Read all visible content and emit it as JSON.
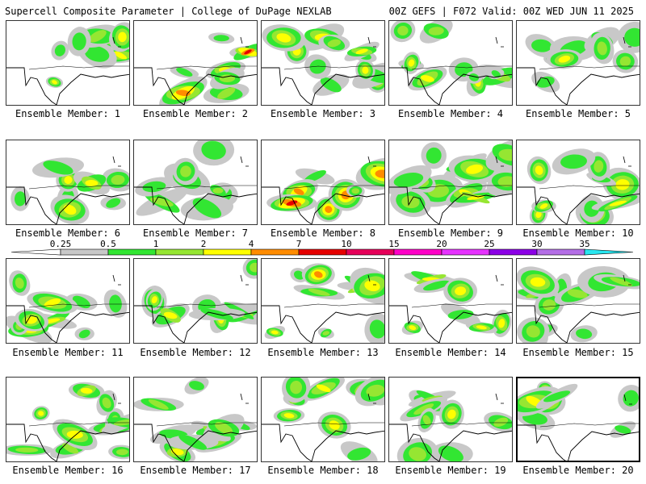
{
  "header": {
    "title_left": "Supercell Composite Parameter | College of DuPage NEXLAB",
    "title_right": "00Z GEFS | F072 Valid: 00Z WED JUN 11 2025"
  },
  "colorbar": {
    "ticks": [
      "0.25",
      "0.5",
      "1",
      "2",
      "4",
      "7",
      "10",
      "15",
      "20",
      "25",
      "30",
      "35"
    ],
    "colors": [
      "#c8c8c8",
      "#32e632",
      "#96e632",
      "#ffff00",
      "#ff8c00",
      "#e60000",
      "#e6005a",
      "#ff00c8",
      "#e632ff",
      "#8c00e6",
      "#b46ee6",
      "#28e6f0"
    ]
  },
  "panels": [
    {
      "label": "Ensemble Member: 1",
      "selected": false
    },
    {
      "label": "Ensemble Member: 2",
      "selected": false
    },
    {
      "label": "Ensemble Member: 3",
      "selected": false
    },
    {
      "label": "Ensemble Member: 4",
      "selected": false
    },
    {
      "label": "Ensemble Member: 5",
      "selected": false
    },
    {
      "label": "Ensemble Member: 6",
      "selected": false
    },
    {
      "label": "Ensemble Member: 7",
      "selected": false
    },
    {
      "label": "Ensemble Member: 8",
      "selected": false
    },
    {
      "label": "Ensemble Member: 9",
      "selected": false
    },
    {
      "label": "Ensemble Member: 10",
      "selected": false
    },
    {
      "label": "Ensemble Member: 11",
      "selected": false
    },
    {
      "label": "Ensemble Member: 12",
      "selected": false
    },
    {
      "label": "Ensemble Member: 13",
      "selected": false
    },
    {
      "label": "Ensemble Member: 14",
      "selected": false
    },
    {
      "label": "Ensemble Member: 15",
      "selected": false
    },
    {
      "label": "Ensemble Member: 16",
      "selected": false
    },
    {
      "label": "Ensemble Member: 17",
      "selected": false
    },
    {
      "label": "Ensemble Member: 18",
      "selected": false
    },
    {
      "label": "Ensemble Member: 19",
      "selected": false
    },
    {
      "label": "Ensemble Member: 20",
      "selected": true
    }
  ]
}
